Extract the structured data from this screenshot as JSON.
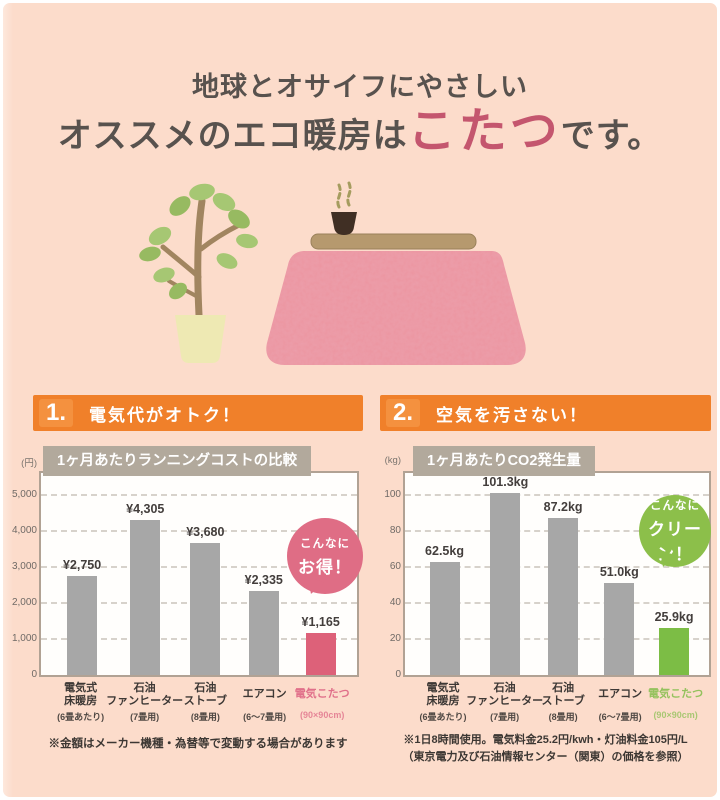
{
  "header": {
    "subtitle": "地球とオサイフにやさしい",
    "title_prefix": "オススメのエコ暖房は",
    "title_highlight": "こたつ",
    "title_suffix": "です。"
  },
  "colors": {
    "background": "#fcdccb",
    "accent_orange": "#f0802a",
    "title_gray": "#58524e",
    "highlight_pink": "#c4566e",
    "chart_titlebar": "#b2a99c",
    "panel_border": "#b1a294",
    "bar_gray": "#a7a7a7",
    "bar_pink": "#dd6179",
    "bar_green": "#7cbd45",
    "bubble_pink": "#df6d85",
    "bubble_green": "#8cbf4a"
  },
  "illustration": {
    "plant_icon": "potted-plant",
    "kotatsu_icon": "kotatsu-table-with-pink-blanket",
    "teacup_icon": "steaming-teacup"
  },
  "sections": [
    {
      "number": "1.",
      "heading": "電気代がオトク！",
      "chart_title": "1ヶ月あたりランニングコストの比較",
      "unit_label": "(円)",
      "bubble_line1": "こんなに",
      "bubble_line2": "お得！",
      "bubble_color": "#df6d85",
      "footnotes": [
        "※金額はメーカー機種・為替等で変動する場合があります"
      ]
    },
    {
      "number": "2.",
      "heading": "空気を汚さない！",
      "chart_title": "1ヶ月あたりCO2発生量",
      "unit_label": "(kg)",
      "bubble_line1": "こんなに",
      "bubble_line2": "クリーン！",
      "bubble_color": "#8cbf4a",
      "footnotes": [
        "※1日8時間使用。電気料金25.2円/kwh・灯油料金105円/L",
        "（東京電力及び石油情報センター（関東）の価格を参照）"
      ]
    }
  ],
  "chart_data": [
    {
      "type": "bar",
      "title": "1ヶ月あたりランニングコストの比較",
      "ylabel": "(円)",
      "ylim": [
        0,
        5500
      ],
      "yticks": [
        0,
        1000,
        2000,
        3000,
        4000,
        5000
      ],
      "ytick_labels": [
        "0",
        "1,000",
        "2,000",
        "3,000",
        "4,000",
        "5,000"
      ],
      "grid": true,
      "categories": [
        "電気式床暖房",
        "石油ファンヒーター",
        "石油ストーブ",
        "エアコン",
        "電気こたつ"
      ],
      "category_lines": [
        [
          "電気式",
          "床暖房"
        ],
        [
          "石油",
          "ファンヒーター"
        ],
        [
          "石油",
          "ストーブ"
        ],
        [
          "エアコン"
        ],
        [
          "電気こたつ"
        ]
      ],
      "category_subs": [
        "(6畳あたり)",
        "(7畳用)",
        "(8畳用)",
        "(6～7畳用)",
        "(90×90cm)"
      ],
      "values": [
        2750,
        4305,
        3680,
        2335,
        1165
      ],
      "value_labels": [
        "¥2,750",
        "¥4,305",
        "¥3,680",
        "¥2,335",
        "¥1,165"
      ],
      "bar_color": "#a7a7a7",
      "highlight_index": 4,
      "highlight_color": "#dd6179",
      "highlight_label_color": "#e0708a",
      "annotation": "こんなにお得！"
    },
    {
      "type": "bar",
      "title": "1ヶ月あたりCO2発生量",
      "ylabel": "(kg)",
      "ylim": [
        0,
        110
      ],
      "yticks": [
        0,
        20,
        40,
        60,
        80,
        100
      ],
      "ytick_labels": [
        "0",
        "20",
        "40",
        "60",
        "80",
        "100"
      ],
      "grid": true,
      "categories": [
        "電気式床暖房",
        "石油ファンヒーター",
        "石油ストーブ",
        "エアコン",
        "電気こたつ"
      ],
      "category_lines": [
        [
          "電気式",
          "床暖房"
        ],
        [
          "石油",
          "ファンヒーター"
        ],
        [
          "石油",
          "ストーブ"
        ],
        [
          "エアコン"
        ],
        [
          "電気こたつ"
        ]
      ],
      "category_subs": [
        "(6畳あたり)",
        "(7畳用)",
        "(8畳用)",
        "(6～7畳用)",
        "(90×90cm)"
      ],
      "values": [
        62.5,
        101.3,
        87.2,
        51.0,
        25.9
      ],
      "value_labels": [
        "62.5kg",
        "101.3kg",
        "87.2kg",
        "51.0kg",
        "25.9kg"
      ],
      "bar_color": "#a7a7a7",
      "highlight_index": 4,
      "highlight_color": "#7cbd45",
      "highlight_label_color": "#94c25d",
      "annotation": "こんなにクリーン！"
    }
  ]
}
